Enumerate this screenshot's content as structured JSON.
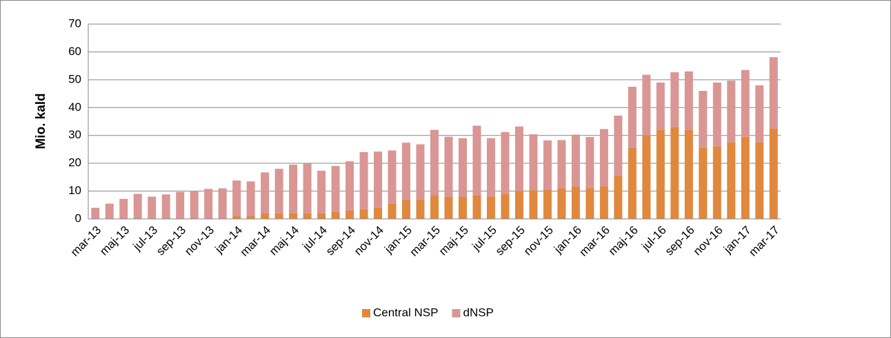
{
  "chart_data": {
    "type": "stacked_bar",
    "y_label": "Mio. kald",
    "categories": [
      "mar-13",
      null,
      "maj-13",
      null,
      "jul-13",
      null,
      "sep-13",
      null,
      "nov-13",
      null,
      "jan-14",
      null,
      "mar-14",
      null,
      "maj-14",
      null,
      "jul-14",
      null,
      "sep-14",
      null,
      "nov-14",
      null,
      "jan-15",
      null,
      "mar-15",
      null,
      "maj-15",
      null,
      "jul-15",
      null,
      "sep-15",
      null,
      "nov-15",
      null,
      "jan-16",
      null,
      "mar-16",
      null,
      "maj-16",
      null,
      "jul-16",
      null,
      "sep-16",
      null,
      "nov-16",
      null,
      "jan-17",
      null,
      "mar-17"
    ],
    "series": [
      {
        "name": "Central NSP",
        "color": "#e0883e",
        "values": [
          0,
          0,
          0,
          0,
          0,
          0,
          0,
          0,
          0,
          0,
          1,
          1,
          2,
          2,
          2,
          2,
          2,
          2.5,
          3,
          3.5,
          4,
          5.5,
          7,
          7,
          8.5,
          8,
          8,
          8.5,
          8,
          9,
          10,
          10.3,
          10.5,
          11,
          11.5,
          11,
          11.8,
          15.5,
          25.5,
          30,
          32,
          33,
          32,
          25.5,
          26,
          27.5,
          29.5,
          27.5,
          32.5
        ]
      },
      {
        "name": "dNSP",
        "color": "#d99694",
        "values": [
          4,
          5.5,
          7.2,
          9,
          8,
          8.8,
          9.7,
          10,
          10.8,
          11,
          12.8,
          12.5,
          14.7,
          16,
          17.5,
          18,
          15.3,
          16.5,
          17.7,
          20.5,
          20.2,
          19.1,
          20.4,
          19.8,
          23.5,
          21.5,
          21,
          25,
          21,
          22.2,
          23.2,
          20.1,
          17.7,
          17.3,
          18.8,
          18.4,
          20.5,
          21.6,
          22,
          21.8,
          17,
          19.7,
          21,
          20.5,
          23,
          22.2,
          24,
          20.5,
          25.6
        ]
      }
    ],
    "ylim": [
      0,
      70
    ],
    "yticks": [
      0,
      10,
      20,
      30,
      40,
      50,
      60,
      70
    ],
    "grid": true,
    "legend": "bottom"
  }
}
